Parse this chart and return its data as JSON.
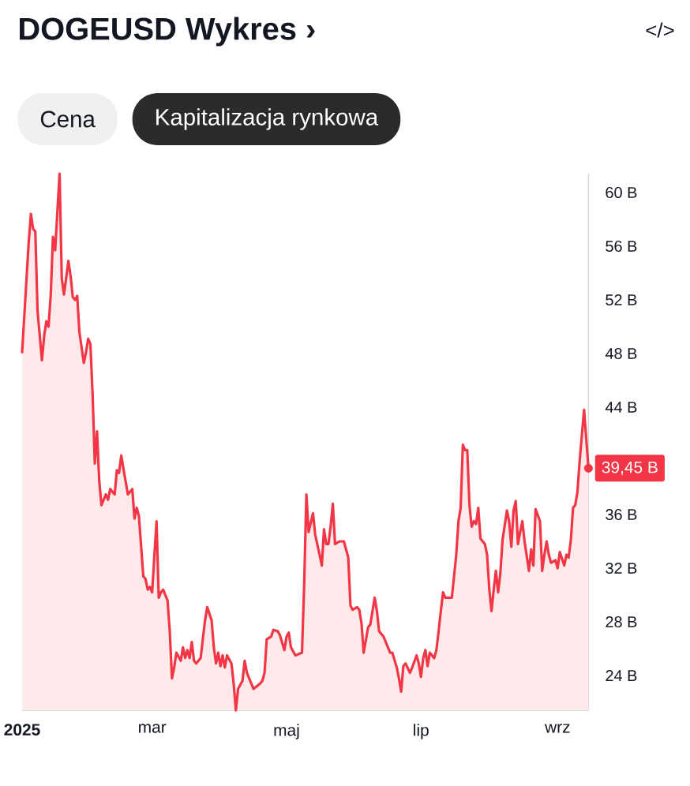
{
  "chart_data": {
    "type": "area",
    "title": "DOGEUSD Wykres ›",
    "annotations": [
      "Cena",
      "Kapitalizacja rynkowa",
      "</>",
      {
        "text": "39,45 B",
        "x": "2025-09-15",
        "y": 39.45
      }
    ],
    "series": [
      {
        "color": "#f23645",
        "x": [
          "2025-01-01",
          "2025-01-04",
          "2025-01-05",
          "2025-01-06",
          "2025-01-07",
          "2025-01-08",
          "2025-01-10",
          "2025-01-11",
          "2025-01-12",
          "2025-01-13",
          "2025-01-14",
          "2025-01-15",
          "2025-01-16",
          "2025-01-18",
          "2025-01-19",
          "2025-01-20",
          "2025-01-22",
          "2025-01-23",
          "2025-01-24",
          "2025-01-25",
          "2025-01-26",
          "2025-01-27",
          "2025-01-29",
          "2025-01-30",
          "2025-01-31",
          "2025-02-01",
          "2025-02-02",
          "2025-02-03",
          "2025-02-04",
          "2025-02-05",
          "2025-02-06",
          "2025-02-08",
          "2025-02-09",
          "2025-02-10",
          "2025-02-12",
          "2025-02-13",
          "2025-02-14",
          "2025-02-15",
          "2025-02-16",
          "2025-02-18",
          "2025-02-20",
          "2025-02-21",
          "2025-02-22",
          "2025-02-23",
          "2025-02-25",
          "2025-02-26",
          "2025-02-27",
          "2025-02-28",
          "2025-03-01",
          "2025-03-03",
          "2025-03-04",
          "2025-03-05",
          "2025-03-06",
          "2025-03-08",
          "2025-03-09",
          "2025-03-10",
          "2025-03-11",
          "2025-03-12",
          "2025-03-14",
          "2025-03-15",
          "2025-03-16",
          "2025-03-17",
          "2025-03-18",
          "2025-03-19",
          "2025-03-20",
          "2025-03-21",
          "2025-03-23",
          "2025-03-25",
          "2025-03-26",
          "2025-03-28",
          "2025-03-29",
          "2025-03-30",
          "2025-03-31",
          "2025-04-01",
          "2025-04-02",
          "2025-04-03",
          "2025-04-04",
          "2025-04-06",
          "2025-04-07",
          "2025-04-08",
          "2025-04-09",
          "2025-04-11",
          "2025-04-12",
          "2025-04-13",
          "2025-04-15",
          "2025-04-16",
          "2025-04-19",
          "2025-04-20",
          "2025-04-21",
          "2025-04-22",
          "2025-04-24",
          "2025-04-25",
          "2025-04-27",
          "2025-04-28",
          "2025-04-30",
          "2025-05-01",
          "2025-05-02",
          "2025-05-03",
          "2025-05-05",
          "2025-05-08",
          "2025-05-09",
          "2025-05-10",
          "2025-05-11",
          "2025-05-13",
          "2025-05-14",
          "2025-05-16",
          "2025-05-17",
          "2025-05-18",
          "2025-05-19",
          "2025-05-20",
          "2025-05-21",
          "2025-05-22",
          "2025-05-23",
          "2025-05-25",
          "2025-05-27",
          "2025-05-29",
          "2025-05-30",
          "2025-05-31",
          "2025-06-02",
          "2025-06-03",
          "2025-06-04",
          "2025-06-05",
          "2025-06-07",
          "2025-06-08",
          "2025-06-09",
          "2025-06-10",
          "2025-06-11",
          "2025-06-12",
          "2025-06-14",
          "2025-06-15",
          "2025-06-17",
          "2025-06-18",
          "2025-06-20",
          "2025-06-21",
          "2025-06-22",
          "2025-06-23",
          "2025-06-24",
          "2025-06-26",
          "2025-06-27",
          "2025-06-29",
          "2025-06-30",
          "2025-07-01",
          "2025-07-02",
          "2025-07-03",
          "2025-07-04",
          "2025-07-05",
          "2025-07-07",
          "2025-07-08",
          "2025-07-09",
          "2025-07-10",
          "2025-07-11",
          "2025-07-12",
          "2025-07-14",
          "2025-07-15",
          "2025-07-16",
          "2025-07-17",
          "2025-07-18",
          "2025-07-19",
          "2025-07-20",
          "2025-07-21",
          "2025-07-22",
          "2025-07-23",
          "2025-07-24",
          "2025-07-25",
          "2025-07-26",
          "2025-07-27",
          "2025-07-28",
          "2025-07-30",
          "2025-07-31",
          "2025-08-01",
          "2025-08-02",
          "2025-08-03",
          "2025-08-04",
          "2025-08-05",
          "2025-08-06",
          "2025-08-07",
          "2025-08-09",
          "2025-08-10",
          "2025-08-11",
          "2025-08-12",
          "2025-08-13",
          "2025-08-14",
          "2025-08-15",
          "2025-08-16",
          "2025-08-17",
          "2025-08-19",
          "2025-08-20",
          "2025-08-21",
          "2025-08-22",
          "2025-08-24",
          "2025-08-25",
          "2025-08-26",
          "2025-08-27",
          "2025-08-28",
          "2025-08-29",
          "2025-08-31",
          "2025-09-01",
          "2025-09-02",
          "2025-09-04",
          "2025-09-05",
          "2025-09-06",
          "2025-09-07",
          "2025-09-08",
          "2025-09-09",
          "2025-09-10",
          "2025-09-11",
          "2025-09-13",
          "2025-09-15"
        ],
        "values": [
          48.1,
          56.3,
          58.4,
          57.3,
          57.1,
          51.2,
          47.5,
          49.3,
          50.4,
          50.0,
          52.4,
          56.7,
          55.7,
          61.4,
          53.6,
          52.4,
          54.9,
          53.8,
          52.2,
          52.0,
          52.3,
          49.6,
          47.3,
          48.1,
          49.1,
          48.7,
          44.9,
          39.8,
          42.2,
          38.5,
          36.7,
          37.5,
          37.1,
          37.9,
          37.5,
          39.3,
          39.1,
          40.4,
          39.4,
          37.5,
          37.9,
          35.7,
          36.5,
          35.9,
          31.4,
          31.2,
          30.4,
          30.6,
          30.2,
          35.5,
          29.8,
          30.2,
          30.4,
          29.6,
          27.3,
          23.8,
          24.6,
          25.7,
          25.1,
          26.1,
          25.3,
          25.9,
          25.3,
          26.5,
          25.1,
          24.9,
          25.3,
          28.1,
          29.1,
          28.1,
          26.1,
          24.9,
          25.7,
          24.7,
          25.5,
          24.6,
          25.5,
          24.9,
          23.4,
          21.4,
          23.0,
          23.6,
          25.1,
          24.2,
          23.4,
          23.0,
          23.4,
          23.6,
          24.2,
          26.7,
          26.9,
          27.4,
          27.3,
          27.0,
          25.9,
          26.9,
          27.2,
          26.1,
          25.5,
          25.7,
          30.8,
          37.5,
          34.7,
          36.1,
          34.5,
          33.0,
          32.2,
          34.9,
          33.8,
          33.8,
          35.1,
          36.8,
          33.8,
          34.0,
          34.0,
          32.8,
          29.2,
          28.9,
          29.1,
          28.9,
          27.9,
          25.7,
          27.6,
          27.8,
          28.8,
          29.8,
          28.8,
          27.3,
          26.9,
          26.5,
          25.7,
          25.7,
          24.6,
          23.8,
          22.8,
          24.7,
          24.9,
          24.2,
          24.6,
          25.5,
          24.9,
          23.9,
          25.3,
          25.9,
          24.7,
          25.7,
          25.3,
          25.9,
          27.3,
          28.8,
          30.2,
          29.8,
          29.8,
          29.8,
          31.4,
          33.0,
          35.5,
          36.5,
          41.2,
          40.8,
          40.8,
          36.7,
          35.1,
          35.5,
          35.3,
          36.5,
          34.2,
          33.8,
          33.0,
          30.4,
          28.8,
          30.4,
          31.8,
          30.2,
          31.6,
          34.1,
          36.3,
          35.5,
          33.6,
          36.3,
          37.0,
          33.8,
          34.7,
          35.5,
          34.0,
          31.8,
          33.4,
          32.2,
          36.4,
          35.5,
          31.8,
          33.0,
          34.0,
          33.0,
          32.4,
          32.6,
          32.0,
          33.2,
          32.2,
          33.0,
          32.8,
          34.1,
          36.5,
          36.7,
          37.7,
          40.0,
          43.8,
          39.45
        ]
      },
      {
        "type": "scatter",
        "color": "#f23645",
        "marker": "circle",
        "x": [
          "2025-09-15"
        ],
        "values": [
          39.45
        ]
      }
    ],
    "xlim": [
      "2025-01-01",
      "2025-09-15"
    ],
    "ylim": [
      21.4,
      61.4
    ],
    "xticks": [
      {
        "value": "2025-01-01",
        "label": "2025"
      },
      {
        "value": "2025-03-01",
        "label": "mar"
      },
      {
        "value": "2025-05-01",
        "label": "maj"
      },
      {
        "value": "2025-07-01",
        "label": "lip"
      },
      {
        "value": "2025-09-01",
        "label": "wrz"
      }
    ],
    "yticks": [
      {
        "value": 24,
        "label": "24 B"
      },
      {
        "value": 28,
        "label": "28 B"
      },
      {
        "value": 32,
        "label": "32 B"
      },
      {
        "value": 36,
        "label": "36 B"
      },
      {
        "value": 44,
        "label": "44 B"
      },
      {
        "value": 48,
        "label": "48 B"
      },
      {
        "value": 52,
        "label": "52 B"
      },
      {
        "value": 56,
        "label": "56 B"
      },
      {
        "value": 60,
        "label": "60 B"
      }
    ]
  }
}
